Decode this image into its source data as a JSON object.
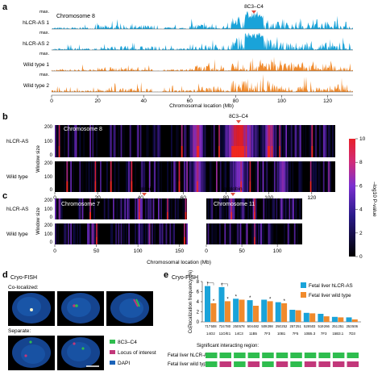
{
  "colors": {
    "blue": "#1aa3d9",
    "orange": "#f08a2c",
    "heat_low": "#000000",
    "heat_mid": "#7b2fd0",
    "heat_high": "#e8202a",
    "marker": "#e05040",
    "fish_green": "#2ebd4e",
    "fish_magenta": "#c2377a",
    "fish_blue": "#1b63b8"
  },
  "panel_a": {
    "letter": "a",
    "chromosome_label": "Chromosome 8",
    "peak_label": "8C3–C4",
    "max_label": "max.",
    "tracks": [
      "hLCR-AS 1",
      "hLCR-AS 2",
      "Wild type 1",
      "Wild type 2"
    ],
    "x_ticks": [
      "0",
      "20",
      "40",
      "60",
      "80",
      "100",
      "120"
    ],
    "x_label": "Chromosomal location (Mb)"
  },
  "panel_b": {
    "letter": "b",
    "chromosome_label": "Chromosome 8",
    "peak_label": "8C3–C4",
    "rows": [
      "hLCR-AS",
      "Wild type"
    ],
    "y_ticks": [
      "200",
      "100",
      "0"
    ],
    "y_label": "Window size",
    "x_ticks": [
      "0",
      "20",
      "40",
      "60",
      "80",
      "100",
      "120"
    ],
    "colorbar_ticks": [
      "10",
      "8",
      "6",
      "4",
      "2",
      "0"
    ],
    "colorbar_label": "–log10 P-value"
  },
  "panel_c": {
    "letter": "c",
    "left_chromosome": "Chromosome 7",
    "right_chromosome": "Chromosome 11",
    "left_marker": "β-globin",
    "right_marker": "α-globin",
    "rows": [
      "hLCR-AS",
      "Wild type"
    ],
    "y_ticks": [
      "200",
      "100",
      "0"
    ],
    "y_label": "Window size",
    "left_x_ticks": [
      "0",
      "50",
      "100",
      "150"
    ],
    "right_x_ticks": [
      "0",
      "50",
      "100"
    ],
    "x_label": "Chromosomal location (Mb)"
  },
  "panel_d": {
    "letter": "d",
    "title": "Cryo-FISH",
    "colocalized_label": "Co-localized:",
    "separate_label": "Separate:",
    "legend": [
      "8C3–C4",
      "Locus of interest",
      "DAPI"
    ]
  },
  "panel_e": {
    "letter": "e",
    "title": "Cryo-FISH",
    "n_prefix": "n =",
    "star": "*",
    "region_title": "Significant interacting region:",
    "region_rows": [
      "Fetal liver hLCR-AS:",
      "Fetal liver wild type:"
    ],
    "chart_data": {
      "type": "bar",
      "ylabel": "Co-localization frequency (%)",
      "ylim": [
        0,
        8
      ],
      "yticks": [
        0,
        2,
        4,
        6,
        8
      ],
      "categories": [
        "14O2",
        "11O/E1",
        "14C3",
        "11B5",
        "7F3",
        "10B1",
        "7F5",
        "10B5.3",
        "7F3",
        "15B3.1",
        "7D3"
      ],
      "legend_position": "top-right",
      "series": [
        {
          "name": "Fetal liver hLCR-AS",
          "values": [
            7.1,
            6.9,
            4.6,
            4.3,
            4.4,
            3.9,
            2.4,
            1.8,
            1.6,
            1.0,
            0.9
          ]
        },
        {
          "name": "Fetal liver wild type",
          "values": [
            3.7,
            4.1,
            4.4,
            3.2,
            4.1,
            3.7,
            2.3,
            1.7,
            1.1,
            0.9,
            0.5
          ]
        }
      ],
      "n_values": [
        [
          "717",
          "508"
        ],
        [
          "724",
          "780"
        ],
        [
          "250",
          "578"
        ],
        [
          "504",
          "482"
        ],
        [
          "509",
          "298"
        ],
        [
          "250",
          "252"
        ],
        [
          "257",
          "251"
        ],
        [
          "528",
          "503"
        ],
        [
          "519",
          "266"
        ],
        [
          "251",
          "251"
        ],
        [
          "253",
          "506"
        ]
      ],
      "stars": [
        [
          true,
          true
        ],
        [
          true,
          true
        ],
        [
          true,
          false
        ],
        [
          true,
          false
        ],
        [
          false,
          true
        ],
        [
          false,
          true
        ],
        [
          false,
          false
        ],
        [
          false,
          false
        ],
        [
          false,
          false
        ],
        [
          false,
          false
        ],
        [
          false,
          false
        ]
      ],
      "hLCR_region": [
        "g",
        "g",
        "g",
        "g",
        "g",
        "g",
        "g",
        "g",
        "g",
        "g",
        "g"
      ],
      "wt_region": [
        "g",
        "m",
        "g",
        "m",
        "g",
        "m",
        "g",
        "m",
        "m",
        "m",
        "m"
      ]
    }
  }
}
